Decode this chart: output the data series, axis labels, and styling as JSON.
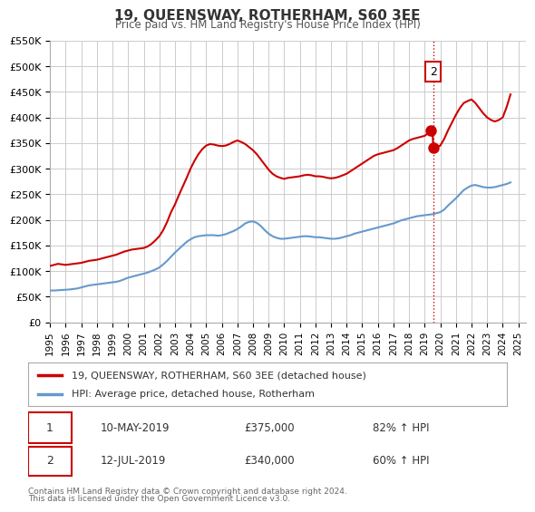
{
  "title": "19, QUEENSWAY, ROTHERHAM, S60 3EE",
  "subtitle": "Price paid vs. HM Land Registry's House Price Index (HPI)",
  "xlabel": "",
  "ylabel": "",
  "ylim": [
    0,
    550000
  ],
  "yticks": [
    0,
    50000,
    100000,
    150000,
    200000,
    250000,
    300000,
    350000,
    400000,
    450000,
    500000,
    550000
  ],
  "ytick_labels": [
    "£0",
    "£50K",
    "£100K",
    "£150K",
    "£200K",
    "£250K",
    "£300K",
    "£350K",
    "£400K",
    "£450K",
    "£500K",
    "£550K"
  ],
  "xlim_start": 1995.0,
  "xlim_end": 2025.5,
  "hpi_color": "#6699cc",
  "price_color": "#cc0000",
  "marker_color": "#cc0000",
  "vline_color": "#cc0000",
  "background_color": "#ffffff",
  "grid_color": "#cccccc",
  "legend_label_price": "19, QUEENSWAY, ROTHERHAM, S60 3EE (detached house)",
  "legend_label_hpi": "HPI: Average price, detached house, Rotherham",
  "annotation1_num": "1",
  "annotation1_date": "10-MAY-2019",
  "annotation1_price": "£375,000",
  "annotation1_hpi": "82% ↑ HPI",
  "annotation2_num": "2",
  "annotation2_date": "12-JUL-2019",
  "annotation2_price": "£340,000",
  "annotation2_hpi": "60% ↑ HPI",
  "footer1": "Contains HM Land Registry data © Crown copyright and database right 2024.",
  "footer2": "This data is licensed under the Open Government Licence v3.0.",
  "vline_x": 2019.55,
  "sale1_x": 2019.36,
  "sale1_y": 375000,
  "sale2_x": 2019.55,
  "sale2_y": 340000,
  "hpi_data_x": [
    1995.0,
    1995.25,
    1995.5,
    1995.75,
    1996.0,
    1996.25,
    1996.5,
    1996.75,
    1997.0,
    1997.25,
    1997.5,
    1997.75,
    1998.0,
    1998.25,
    1998.5,
    1998.75,
    1999.0,
    1999.25,
    1999.5,
    1999.75,
    2000.0,
    2000.25,
    2000.5,
    2000.75,
    2001.0,
    2001.25,
    2001.5,
    2001.75,
    2002.0,
    2002.25,
    2002.5,
    2002.75,
    2003.0,
    2003.25,
    2003.5,
    2003.75,
    2004.0,
    2004.25,
    2004.5,
    2004.75,
    2005.0,
    2005.25,
    2005.5,
    2005.75,
    2006.0,
    2006.25,
    2006.5,
    2006.75,
    2007.0,
    2007.25,
    2007.5,
    2007.75,
    2008.0,
    2008.25,
    2008.5,
    2008.75,
    2009.0,
    2009.25,
    2009.5,
    2009.75,
    2010.0,
    2010.25,
    2010.5,
    2010.75,
    2011.0,
    2011.25,
    2011.5,
    2011.75,
    2012.0,
    2012.25,
    2012.5,
    2012.75,
    2013.0,
    2013.25,
    2013.5,
    2013.75,
    2014.0,
    2014.25,
    2014.5,
    2014.75,
    2015.0,
    2015.25,
    2015.5,
    2015.75,
    2016.0,
    2016.25,
    2016.5,
    2016.75,
    2017.0,
    2017.25,
    2017.5,
    2017.75,
    2018.0,
    2018.25,
    2018.5,
    2018.75,
    2019.0,
    2019.25,
    2019.5,
    2019.75,
    2020.0,
    2020.25,
    2020.5,
    2020.75,
    2021.0,
    2021.25,
    2021.5,
    2021.75,
    2022.0,
    2022.25,
    2022.5,
    2022.75,
    2023.0,
    2023.25,
    2023.5,
    2023.75,
    2024.0,
    2024.25,
    2024.5
  ],
  "hpi_data_y": [
    62000,
    62000,
    62500,
    63000,
    63500,
    64000,
    65000,
    66000,
    68000,
    70000,
    72000,
    73000,
    74000,
    75000,
    76000,
    77000,
    78000,
    79000,
    81000,
    84000,
    87000,
    89000,
    91000,
    93000,
    95000,
    97000,
    100000,
    103000,
    107000,
    113000,
    120000,
    128000,
    136000,
    143000,
    150000,
    157000,
    162000,
    166000,
    168000,
    169000,
    170000,
    170000,
    170000,
    169000,
    170000,
    172000,
    175000,
    178000,
    182000,
    187000,
    193000,
    196000,
    197000,
    194000,
    188000,
    180000,
    173000,
    168000,
    165000,
    163000,
    163000,
    164000,
    165000,
    166000,
    167000,
    168000,
    168000,
    167000,
    166000,
    166000,
    165000,
    164000,
    163000,
    163000,
    164000,
    166000,
    168000,
    170000,
    173000,
    175000,
    177000,
    179000,
    181000,
    183000,
    185000,
    187000,
    189000,
    191000,
    193000,
    196000,
    199000,
    201000,
    203000,
    205000,
    207000,
    208000,
    209000,
    210000,
    211000,
    213000,
    215000,
    220000,
    228000,
    235000,
    242000,
    250000,
    258000,
    263000,
    267000,
    268000,
    266000,
    264000,
    263000,
    263000,
    264000,
    266000,
    268000,
    270000,
    273000
  ],
  "price_data_x": [
    1995.0,
    1995.25,
    1995.5,
    1995.75,
    1996.0,
    1996.25,
    1996.5,
    1996.75,
    1997.0,
    1997.25,
    1997.5,
    1997.75,
    1998.0,
    1998.25,
    1998.5,
    1998.75,
    1999.0,
    1999.25,
    1999.5,
    1999.75,
    2000.0,
    2000.25,
    2000.5,
    2000.75,
    2001.0,
    2001.25,
    2001.5,
    2001.75,
    2002.0,
    2002.25,
    2002.5,
    2002.75,
    2003.0,
    2003.25,
    2003.5,
    2003.75,
    2004.0,
    2004.25,
    2004.5,
    2004.75,
    2005.0,
    2005.25,
    2005.5,
    2005.75,
    2006.0,
    2006.25,
    2006.5,
    2006.75,
    2007.0,
    2007.25,
    2007.5,
    2007.75,
    2008.0,
    2008.25,
    2008.5,
    2008.75,
    2009.0,
    2009.25,
    2009.5,
    2009.75,
    2010.0,
    2010.25,
    2010.5,
    2010.75,
    2011.0,
    2011.25,
    2011.5,
    2011.75,
    2012.0,
    2012.25,
    2012.5,
    2012.75,
    2013.0,
    2013.25,
    2013.5,
    2013.75,
    2014.0,
    2014.25,
    2014.5,
    2014.75,
    2015.0,
    2015.25,
    2015.5,
    2015.75,
    2016.0,
    2016.25,
    2016.5,
    2016.75,
    2017.0,
    2017.25,
    2017.5,
    2017.75,
    2018.0,
    2018.25,
    2018.5,
    2018.75,
    2019.0,
    2019.25,
    2019.5,
    2019.55,
    2019.75,
    2020.0,
    2020.25,
    2020.5,
    2020.75,
    2021.0,
    2021.25,
    2021.5,
    2021.75,
    2022.0,
    2022.25,
    2022.5,
    2022.75,
    2023.0,
    2023.25,
    2023.5,
    2023.75,
    2024.0,
    2024.25,
    2024.5
  ],
  "price_data_y": [
    110000,
    112000,
    114000,
    113000,
    112000,
    113000,
    114000,
    115000,
    116000,
    118000,
    120000,
    121000,
    122000,
    124000,
    126000,
    128000,
    130000,
    132000,
    135000,
    138000,
    140000,
    142000,
    143000,
    144000,
    145000,
    148000,
    153000,
    160000,
    168000,
    180000,
    196000,
    215000,
    230000,
    248000,
    265000,
    282000,
    300000,
    315000,
    328000,
    338000,
    345000,
    348000,
    347000,
    345000,
    344000,
    345000,
    348000,
    352000,
    355000,
    352000,
    348000,
    342000,
    336000,
    328000,
    318000,
    308000,
    298000,
    290000,
    285000,
    282000,
    280000,
    282000,
    283000,
    284000,
    285000,
    287000,
    288000,
    287000,
    285000,
    285000,
    284000,
    282000,
    281000,
    282000,
    284000,
    287000,
    290000,
    295000,
    300000,
    305000,
    310000,
    315000,
    320000,
    325000,
    328000,
    330000,
    332000,
    334000,
    336000,
    340000,
    345000,
    350000,
    355000,
    358000,
    360000,
    362000,
    364000,
    370000,
    375000,
    340000,
    342000,
    345000,
    358000,
    375000,
    390000,
    405000,
    418000,
    428000,
    432000,
    435000,
    428000,
    418000,
    408000,
    400000,
    395000,
    392000,
    395000,
    400000,
    420000,
    445000
  ]
}
